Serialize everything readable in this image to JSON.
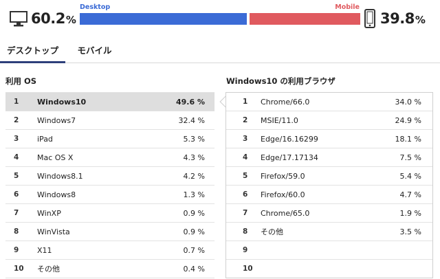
{
  "share": {
    "desktop": {
      "label": "Desktop",
      "value": "60.2",
      "unit": "%",
      "fraction": 0.602,
      "color": "#3b6bd6",
      "icon": "desktop-monitor-icon"
    },
    "mobile": {
      "label": "Mobile",
      "value": "39.8",
      "unit": "%",
      "fraction": 0.398,
      "color": "#e05a5f",
      "icon": "mobile-phone-icon"
    }
  },
  "tabs": [
    {
      "label": "デスクトップ",
      "active": true
    },
    {
      "label": "モバイル",
      "active": false
    }
  ],
  "os_section": {
    "title": "利用 OS",
    "rows": [
      {
        "rank": "1",
        "name": "Windows10",
        "value": "49.6 %"
      },
      {
        "rank": "2",
        "name": "Windows7",
        "value": "32.4 %"
      },
      {
        "rank": "3",
        "name": "iPad",
        "value": "5.3 %"
      },
      {
        "rank": "4",
        "name": "Mac OS X",
        "value": "4.3 %"
      },
      {
        "rank": "5",
        "name": "Windows8.1",
        "value": "4.2 %"
      },
      {
        "rank": "6",
        "name": "Windows8",
        "value": "1.3 %"
      },
      {
        "rank": "7",
        "name": "WinXP",
        "value": "0.9 %"
      },
      {
        "rank": "8",
        "name": "WinVista",
        "value": "0.9 %"
      },
      {
        "rank": "9",
        "name": "X11",
        "value": "0.7 %"
      },
      {
        "rank": "10",
        "name": "その他",
        "value": "0.4 %"
      }
    ]
  },
  "browser_section": {
    "title": "Windows10 の利用ブラウザ",
    "rows": [
      {
        "rank": "1",
        "name": "Chrome/66.0",
        "value": "34.0 %"
      },
      {
        "rank": "2",
        "name": "MSIE/11.0",
        "value": "24.9 %"
      },
      {
        "rank": "3",
        "name": "Edge/16.16299",
        "value": "18.1 %"
      },
      {
        "rank": "4",
        "name": "Edge/17.17134",
        "value": "7.5 %"
      },
      {
        "rank": "5",
        "name": "Firefox/59.0",
        "value": "5.4 %"
      },
      {
        "rank": "6",
        "name": "Firefox/60.0",
        "value": "4.7 %"
      },
      {
        "rank": "7",
        "name": "Chrome/65.0",
        "value": "1.9 %"
      },
      {
        "rank": "8",
        "name": "その他",
        "value": "3.5 %"
      },
      {
        "rank": "9",
        "name": "",
        "value": ""
      },
      {
        "rank": "10",
        "name": "",
        "value": ""
      }
    ]
  }
}
